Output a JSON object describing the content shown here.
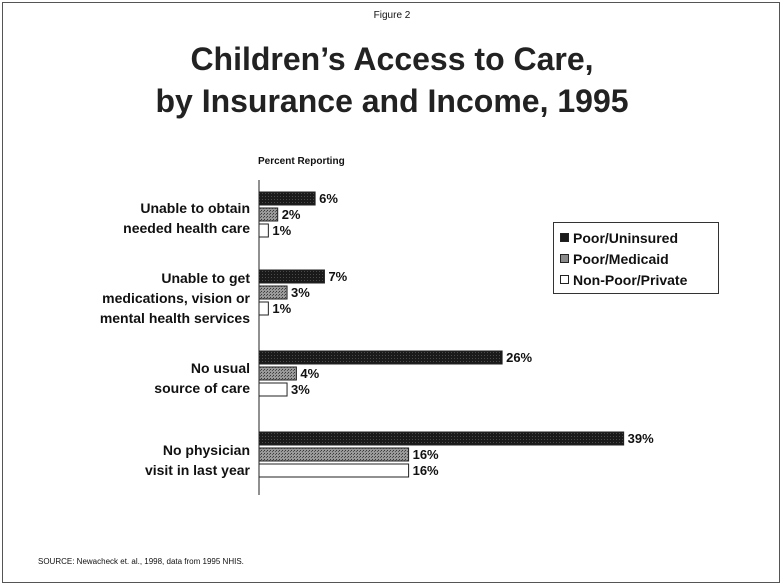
{
  "figure_label": "Figure 2",
  "title_line1": "Children’s Access to Care,",
  "title_line2": "by Insurance and Income, 1995",
  "source": "SOURCE: Newacheck et. al., 1998, data from 1995 NHIS.",
  "colors": {
    "Poor/Uninsured": "#1a1a1a",
    "Poor/Medicaid": "#8a8a8a",
    "Non-Poor/Private": "#ffffff"
  },
  "chart_data": {
    "type": "bar",
    "orientation": "horizontal",
    "title": "Children’s Access to Care, by Insurance and Income, 1995",
    "xlabel": "Percent Reporting",
    "ylabel": "",
    "categories": [
      "Unable to obtain needed health care",
      "Unable to get medications, vision or mental health services",
      "No usual source of care",
      "No physician visit in last year"
    ],
    "category_lines": [
      [
        "Unable to obtain",
        "needed health care"
      ],
      [
        "Unable to get",
        "medications, vision or",
        "mental health services"
      ],
      [
        "No usual",
        "source of care"
      ],
      [
        "No physician",
        "visit in last year"
      ]
    ],
    "series": [
      {
        "name": "Poor/Uninsured",
        "values": [
          6,
          7,
          26,
          39
        ],
        "labels": [
          "6%",
          "7%",
          "26%",
          "39%"
        ]
      },
      {
        "name": "Poor/Medicaid",
        "values": [
          2,
          3,
          4,
          16
        ],
        "labels": [
          "2%",
          "3%",
          "4%",
          "16%"
        ]
      },
      {
        "name": "Non-Poor/Private",
        "values": [
          1,
          1,
          3,
          16
        ],
        "labels": [
          "1%",
          "1%",
          "3%",
          "16%"
        ]
      }
    ],
    "xlim": [
      0,
      40
    ],
    "grid": false,
    "legend_position": "right"
  }
}
